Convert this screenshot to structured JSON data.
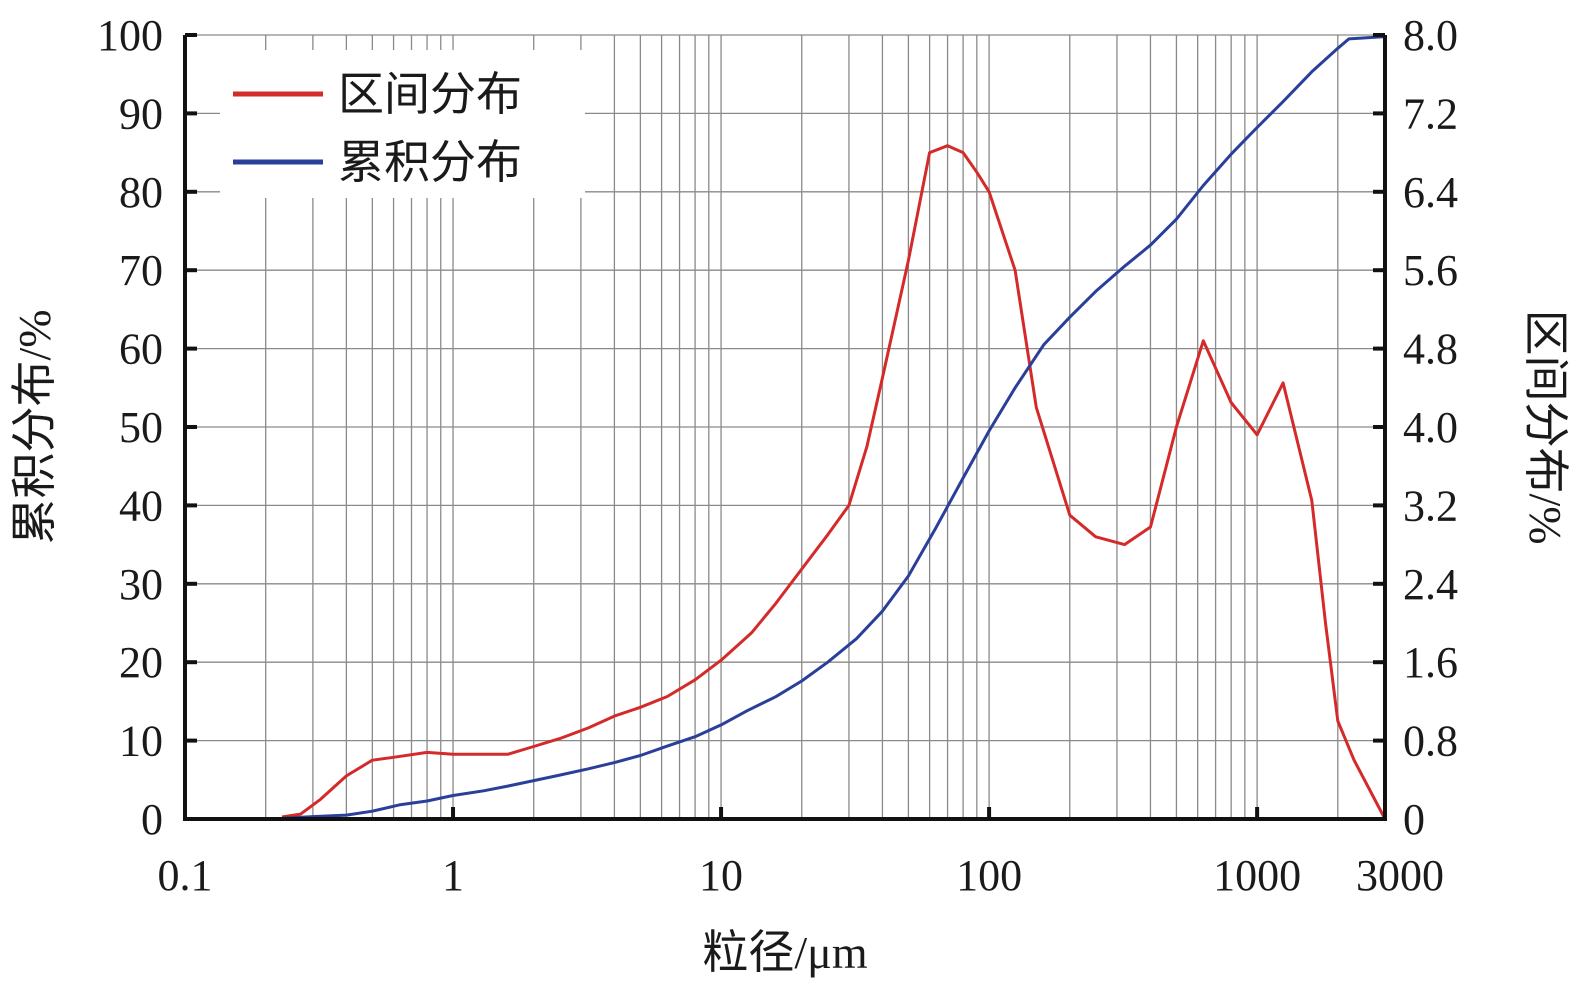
{
  "chart_data": {
    "type": "line",
    "xlabel": "粒径/μm",
    "ylabel_left": "累积分布/%",
    "ylabel_right": "区间分布/%",
    "x_scale": "log",
    "xlim": [
      0.1,
      3000
    ],
    "ylim_left": [
      0,
      100
    ],
    "ylim_right": [
      0,
      8.0
    ],
    "x_ticks": [
      {
        "value": 0.1,
        "label": "0.1"
      },
      {
        "value": 1,
        "label": "1"
      },
      {
        "value": 10,
        "label": "10"
      },
      {
        "value": 100,
        "label": "100"
      },
      {
        "value": 1000,
        "label": "1000"
      },
      {
        "value": 3000,
        "label": "3000"
      }
    ],
    "y_ticks_left": [
      "0",
      "10",
      "20",
      "30",
      "40",
      "50",
      "60",
      "70",
      "80",
      "90",
      "100"
    ],
    "y_ticks_right": [
      "0",
      "0.8",
      "1.6",
      "2.4",
      "3.2",
      "4.0",
      "4.8",
      "5.6",
      "6.4",
      "7.2",
      "8.0"
    ],
    "grid": true,
    "legend_position": "top-left",
    "series": [
      {
        "name": "区间分布",
        "axis": "right",
        "color": "#d42a2a",
        "points": [
          [
            0.23,
            0.02
          ],
          [
            0.27,
            0.05
          ],
          [
            0.32,
            0.2
          ],
          [
            0.4,
            0.44
          ],
          [
            0.5,
            0.6
          ],
          [
            0.6,
            0.63
          ],
          [
            0.8,
            0.68
          ],
          [
            1.0,
            0.66
          ],
          [
            1.3,
            0.66
          ],
          [
            1.6,
            0.66
          ],
          [
            2,
            0.74
          ],
          [
            2.5,
            0.82
          ],
          [
            3.2,
            0.93
          ],
          [
            4,
            1.05
          ],
          [
            5,
            1.14
          ],
          [
            6.3,
            1.25
          ],
          [
            8,
            1.42
          ],
          [
            10,
            1.62
          ],
          [
            13,
            1.9
          ],
          [
            16,
            2.2
          ],
          [
            20,
            2.55
          ],
          [
            25,
            2.9
          ],
          [
            30,
            3.2
          ],
          [
            35,
            3.8
          ],
          [
            40,
            4.5
          ],
          [
            50,
            5.7
          ],
          [
            60,
            6.8
          ],
          [
            70,
            6.87
          ],
          [
            80,
            6.8
          ],
          [
            90,
            6.6
          ],
          [
            100,
            6.4
          ],
          [
            125,
            5.6
          ],
          [
            150,
            4.2
          ],
          [
            200,
            3.1
          ],
          [
            250,
            2.88
          ],
          [
            320,
            2.8
          ],
          [
            400,
            2.98
          ],
          [
            500,
            4.0
          ],
          [
            630,
            4.88
          ],
          [
            800,
            4.25
          ],
          [
            1000,
            3.92
          ],
          [
            1250,
            4.45
          ],
          [
            1600,
            3.25
          ],
          [
            1800,
            2.0
          ],
          [
            2000,
            1.0
          ],
          [
            2300,
            0.6
          ],
          [
            3000,
            0.0
          ]
        ]
      },
      {
        "name": "累积分布",
        "axis": "left",
        "color": "#2a3f9a",
        "points": [
          [
            0.23,
            0.1
          ],
          [
            0.3,
            0.3
          ],
          [
            0.4,
            0.5
          ],
          [
            0.5,
            1.0
          ],
          [
            0.63,
            1.8
          ],
          [
            0.8,
            2.3
          ],
          [
            1.0,
            3.0
          ],
          [
            1.3,
            3.6
          ],
          [
            1.6,
            4.2
          ],
          [
            2,
            4.9
          ],
          [
            2.5,
            5.6
          ],
          [
            3.2,
            6.4
          ],
          [
            4,
            7.2
          ],
          [
            5,
            8.1
          ],
          [
            6.3,
            9.3
          ],
          [
            8,
            10.5
          ],
          [
            10,
            12.0
          ],
          [
            12.5,
            13.8
          ],
          [
            16,
            15.6
          ],
          [
            20,
            17.6
          ],
          [
            25,
            20.0
          ],
          [
            32,
            23.0
          ],
          [
            40,
            26.5
          ],
          [
            50,
            31.0
          ],
          [
            63,
            37.0
          ],
          [
            80,
            43.5
          ],
          [
            100,
            49.5
          ],
          [
            125,
            55.0
          ],
          [
            160,
            60.5
          ],
          [
            200,
            64.0
          ],
          [
            250,
            67.3
          ],
          [
            320,
            70.5
          ],
          [
            400,
            73.2
          ],
          [
            500,
            76.5
          ],
          [
            630,
            80.8
          ],
          [
            800,
            84.8
          ],
          [
            1000,
            88.2
          ],
          [
            1250,
            91.5
          ],
          [
            1600,
            95.3
          ],
          [
            2000,
            98.3
          ],
          [
            2200,
            99.5
          ],
          [
            3000,
            99.8
          ]
        ]
      }
    ]
  }
}
